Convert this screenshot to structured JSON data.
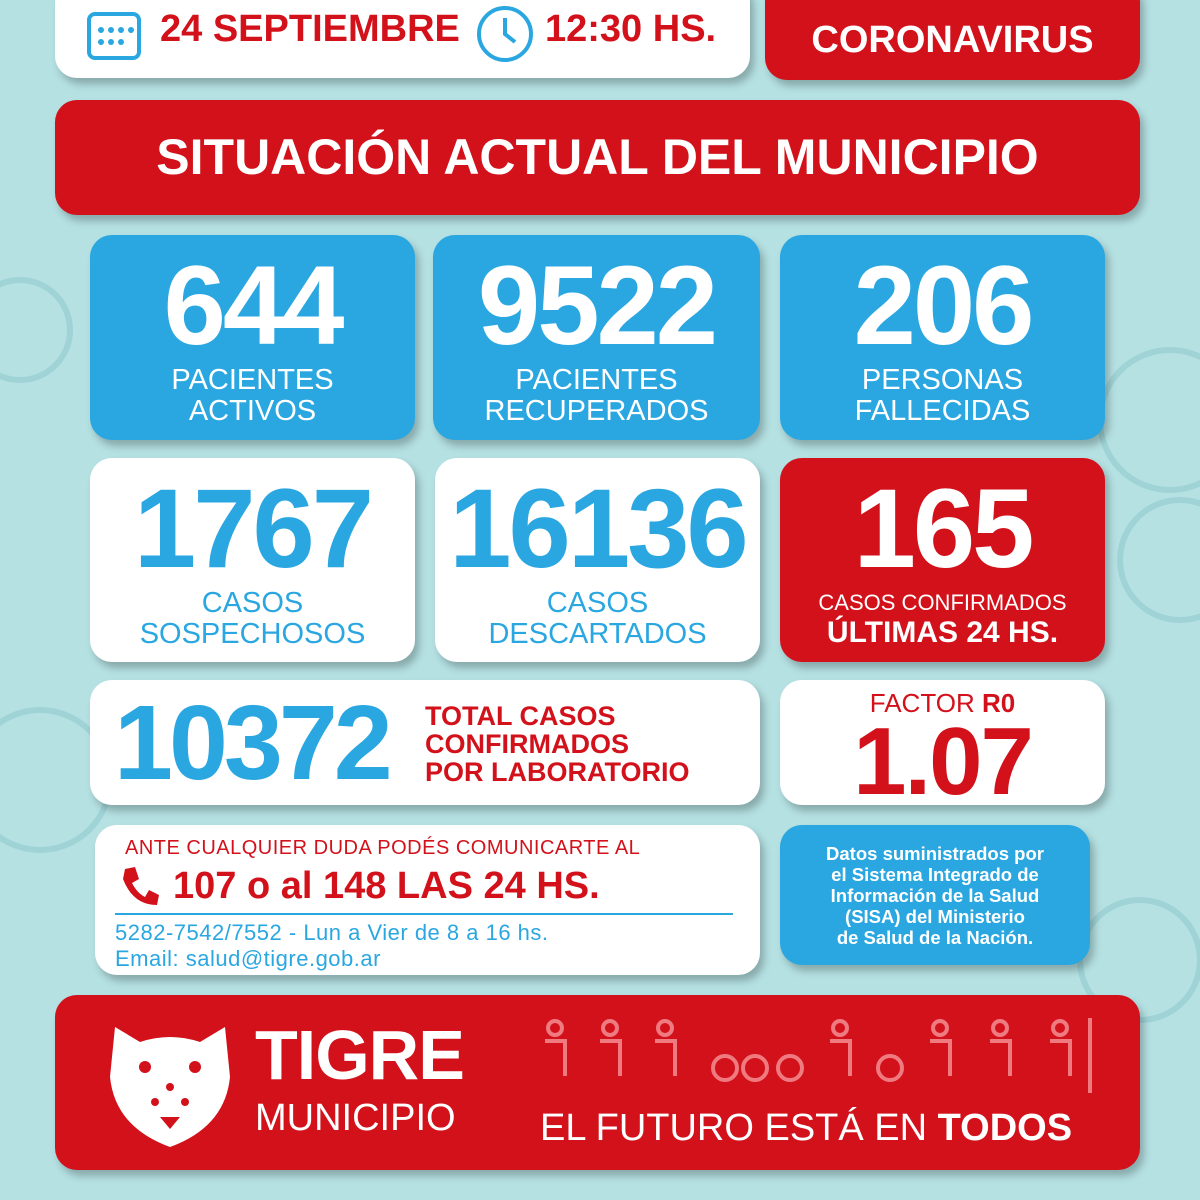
{
  "header": {
    "date": "24 SEPTIEMBRE",
    "time": "12:30 HS.",
    "tag": "CORONAVIRUS"
  },
  "title": "SITUACIÓN ACTUAL DEL MUNICIPIO",
  "stats": [
    {
      "value": 644,
      "label": [
        "PACIENTES",
        "ACTIVOS"
      ]
    },
    {
      "value": 9522,
      "label": [
        "PACIENTES",
        "RECUPERADOS"
      ]
    },
    {
      "value": 206,
      "label": [
        "PERSONAS",
        "FALLECIDAS"
      ]
    },
    {
      "value": 1767,
      "label": [
        "CASOS",
        "SOSPECHOSOS"
      ]
    },
    {
      "value": 16136,
      "label": [
        "CASOS",
        "DESCARTADOS"
      ]
    },
    {
      "value": 165,
      "label": [
        "CASOS CONFIRMADOS",
        "ÚLTIMAS 24 HS."
      ]
    }
  ],
  "total": {
    "value": 10372,
    "label": [
      "TOTAL CASOS",
      "CONFIRMADOS",
      "POR LABORATORIO"
    ]
  },
  "factor": {
    "label": "FACTOR",
    "label_bold": "R0",
    "value": 1.07
  },
  "contact": {
    "intro": "ANTE CUALQUIER DUDA PODÉS COMUNICARTE AL",
    "phones": "107 o al 148 LAS 24 HS.",
    "lines": [
      "5282-7542/7552 - Lun a Vier de 8 a 16 hs.",
      "Email: salud@tigre.gob.ar"
    ]
  },
  "source": [
    "Datos suministrados por",
    "el Sistema Integrado de",
    "Información de la Salud",
    "(SISA) del Ministerio",
    "de Salud de la Nación."
  ],
  "footer": {
    "brand": "TIGRE",
    "sub": "MUNICIPIO",
    "slogan": "EL FUTURO ESTÁ EN",
    "slogan_bold": "TODOS"
  }
}
